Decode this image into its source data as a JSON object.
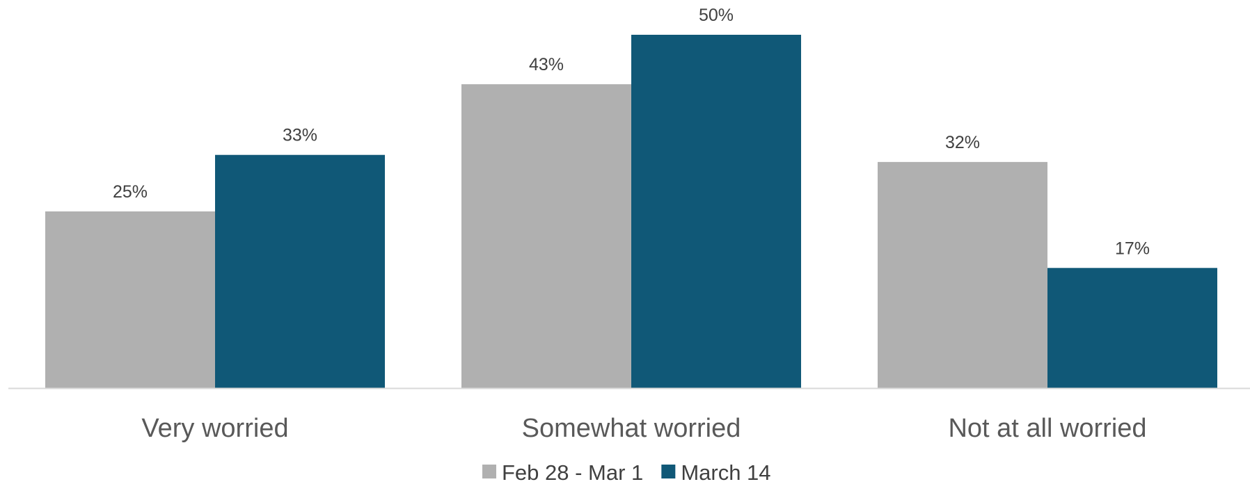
{
  "chart_data": {
    "type": "bar",
    "categories": [
      "Very worried",
      "Somewhat worried",
      "Not at all worried"
    ],
    "series": [
      {
        "name": "Feb 28 - Mar 1",
        "values": [
          25,
          43,
          32
        ],
        "labels": [
          "25%",
          "43%",
          "32%"
        ],
        "color": "#b0b0b0"
      },
      {
        "name": "March 14",
        "values": [
          33,
          50,
          17
        ],
        "labels": [
          "33%",
          "50%",
          "17%"
        ],
        "color": "#105877"
      }
    ],
    "title": "",
    "xlabel": "",
    "ylabel": "",
    "ylim": [
      0,
      50
    ],
    "grid": false,
    "legend_position": "bottom",
    "axis_line_color": "#d9d9d9"
  }
}
